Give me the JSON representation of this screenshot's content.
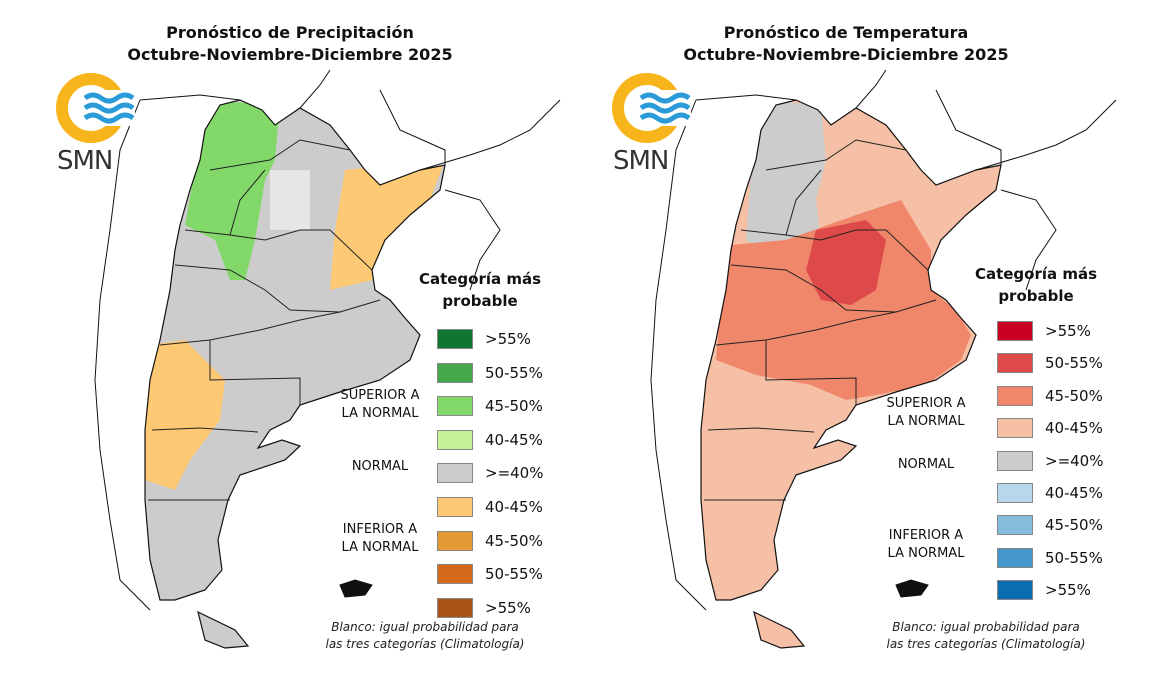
{
  "panels": [
    {
      "title_line1": "Pronóstico de Precipitación",
      "title_line2": "Octubre-Noviembre-Diciembre 2025",
      "logo_text": "SMN",
      "legend_title_line1": "Categoría más",
      "legend_title_line2": "probable",
      "categories": {
        "superior": [
          "SUPERIOR A",
          "LA NORMAL"
        ],
        "normal": "NORMAL",
        "inferior": [
          "INFERIOR A",
          "LA NORMAL"
        ]
      },
      "legend": [
        {
          "label": ">55%",
          "color": "#0f7530"
        },
        {
          "label": "50-55%",
          "color": "#45a84c"
        },
        {
          "label": "45-50%",
          "color": "#82d96a"
        },
        {
          "label": "40-45%",
          "color": "#c8f29a"
        },
        {
          "label": ">=40%",
          "color": "#cccccc"
        },
        {
          "label": "40-45%",
          "color": "#fdc975"
        },
        {
          "label": "45-50%",
          "color": "#e39a35"
        },
        {
          "label": "50-55%",
          "color": "#d5691c"
        },
        {
          "label": ">55%",
          "color": "#a9551a"
        }
      ],
      "footnote_line1": "Blanco: igual probabilidad para",
      "footnote_line2": "las tres categorías (Climatología)"
    },
    {
      "title_line1": "Pronóstico de Temperatura",
      "title_line2": "Octubre-Noviembre-Diciembre 2025",
      "logo_text": "SMN",
      "legend_title_line1": "Categoría más",
      "legend_title_line2": "probable",
      "categories": {
        "superior": [
          "SUPERIOR A",
          "LA NORMAL"
        ],
        "normal": "NORMAL",
        "inferior": [
          "INFERIOR A",
          "LA NORMAL"
        ]
      },
      "legend": [
        {
          "label": ">55%",
          "color": "#c90022"
        },
        {
          "label": "50-55%",
          "color": "#de4a4a"
        },
        {
          "label": "45-50%",
          "color": "#f0876a"
        },
        {
          "label": "40-45%",
          "color": "#f5c0a6"
        },
        {
          "label": ">=40%",
          "color": "#cccccc"
        },
        {
          "label": "40-45%",
          "color": "#b6d8ea"
        },
        {
          "label": "45-50%",
          "color": "#84bcdb"
        },
        {
          "label": "50-55%",
          "color": "#4597c9"
        },
        {
          "label": ">55%",
          "color": "#0c6cb0"
        }
      ],
      "footnote_line1": "Blanco: igual probabilidad para",
      "footnote_line2": "las tres categorías (Climatología)"
    }
  ]
}
